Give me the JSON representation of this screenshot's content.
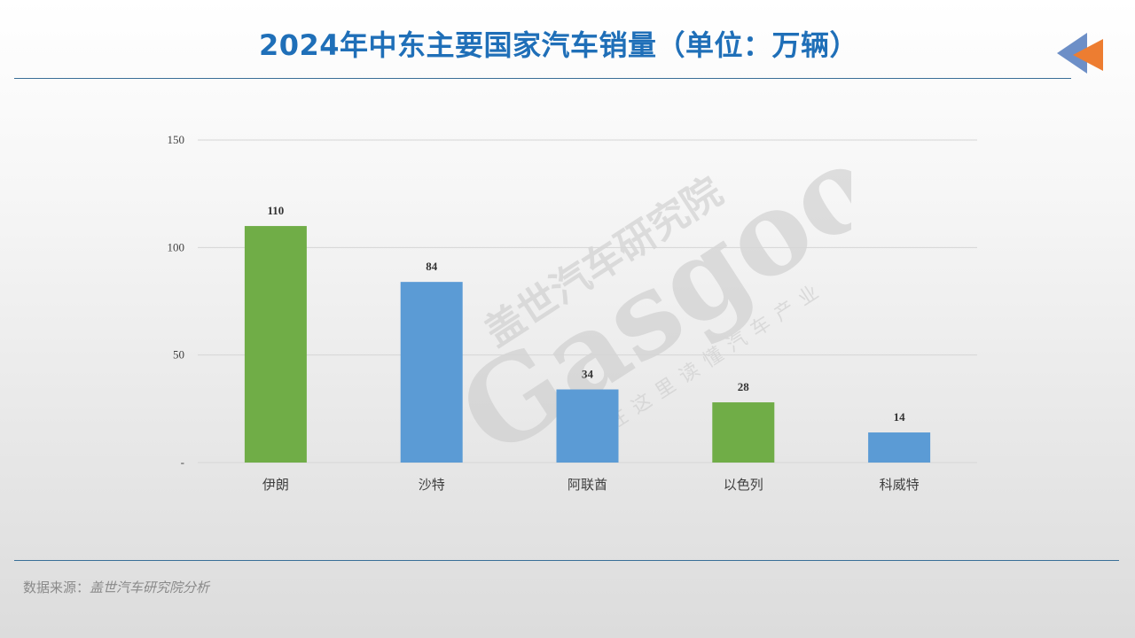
{
  "header": {
    "title": "2024年中东主要国家汽车销量（单位：万辆）"
  },
  "footer": {
    "source_label": "数据来源：",
    "source_value": "盖世汽车研究院分析"
  },
  "watermark": {
    "brand": "Gasgoo",
    "cn_name": "盖世汽车研究院",
    "slogan": "在这里读懂汽车产业"
  },
  "icons": {
    "back": "back-arrow-icon"
  },
  "colors": {
    "title": "#1f6fb8",
    "green": "#70ad47",
    "blue": "#5b9bd5",
    "arrow_back": "#6d8fc7",
    "arrow_front": "#ed7d31"
  },
  "chart_data": {
    "type": "bar",
    "categories": [
      "伊朗",
      "沙特",
      "阿联酋",
      "以色列",
      "科威特"
    ],
    "values": [
      110,
      84,
      34,
      28,
      14
    ],
    "bar_colors": [
      "#70ad47",
      "#5b9bd5",
      "#5b9bd5",
      "#70ad47",
      "#5b9bd5"
    ],
    "ylim": [
      0,
      150
    ],
    "yticks": [
      0,
      50,
      100,
      150
    ],
    "ytick_labels": [
      "-",
      "50",
      "100",
      "150"
    ],
    "grid": true,
    "legend": "none"
  }
}
